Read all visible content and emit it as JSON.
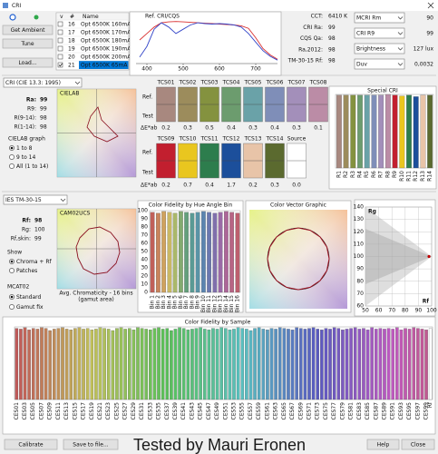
{
  "window": {
    "title": "CRI"
  },
  "buttons": {
    "get_ambient": "Get Ambient",
    "tune": "Tune",
    "load": "Load...",
    "calibrate": "Calibrate",
    "save": "Save to file...",
    "help": "Help",
    "close": "Close"
  },
  "measurements": {
    "headers": [
      "v",
      "#",
      "Name"
    ],
    "rows": [
      {
        "number": 16,
        "name": "Opt 6500K 160mA"
      },
      {
        "number": 17,
        "name": "Opt 6500K 170mA"
      },
      {
        "number": 18,
        "name": "Opt 6500K 180mA"
      },
      {
        "number": 19,
        "name": "Opt 6500K 190mA"
      },
      {
        "number": 20,
        "name": "Opt 6500K 200mA"
      },
      {
        "number": 21,
        "name": "Opt 6500K 65mA",
        "selected": true
      }
    ]
  },
  "metrics": [
    {
      "label": "CCT:",
      "value": "6410 K"
    },
    {
      "label": "CRI Ra:",
      "value": 99
    },
    {
      "label": "CQS Qa:",
      "value": 98
    },
    {
      "label": "Ra,2012:",
      "value": 98
    },
    {
      "label": "TM-30-15 Rf:",
      "value": 98
    }
  ],
  "selectors": [
    {
      "label": "MCRI Rm",
      "value": 90
    },
    {
      "label": "CRI R9",
      "value": 99
    },
    {
      "label": "Brightness",
      "value": "127 lux"
    },
    {
      "label": "Duv",
      "value": "0,0032"
    }
  ],
  "cri": {
    "method": "CRI (CIE 13.3: 1995)",
    "stats": [
      {
        "label": "Ra:",
        "value": 99
      },
      {
        "label": "R9:",
        "value": 99
      },
      {
        "label": "R(9-14):",
        "value": 98
      },
      {
        "label": "R(1-14):",
        "value": 98
      }
    ],
    "graph_label": "CIELAB graph",
    "graph_options": [
      "1 to 8",
      "9 to 14",
      "All (1 to 14)"
    ],
    "graph_selected": 0,
    "plot_title": "CIELAB"
  },
  "tcs": {
    "ref_label": "Ref.",
    "test_label": "Test",
    "delta_label": "ΔE*ab",
    "rows": [
      [
        {
          "name": "TCS01",
          "color": "#a8887f",
          "delta": "0.2"
        },
        {
          "name": "TCS02",
          "color": "#9c8c5c",
          "delta": "0.3"
        },
        {
          "name": "TCS03",
          "color": "#84923f",
          "delta": "0.5"
        },
        {
          "name": "TCS04",
          "color": "#6c9c6e",
          "delta": "0.4"
        },
        {
          "name": "TCS05",
          "color": "#6aa2a8",
          "delta": "0.3"
        },
        {
          "name": "TCS06",
          "color": "#7f8eb8",
          "delta": "0.4"
        },
        {
          "name": "TCS07",
          "color": "#a38fba",
          "delta": "0.3"
        },
        {
          "name": "TCS08",
          "color": "#bb8ca6",
          "delta": "0.1"
        }
      ],
      [
        {
          "name": "TCS09",
          "color": "#c21f2f",
          "delta": "0.2"
        },
        {
          "name": "TCS10",
          "color": "#e9c61f",
          "delta": "0.7"
        },
        {
          "name": "TCS11",
          "color": "#2d7d4d",
          "delta": "0.4"
        },
        {
          "name": "TCS12",
          "color": "#1c4f9b",
          "delta": "1.7"
        },
        {
          "name": "TCS13",
          "color": "#e8c4a8",
          "delta": "0.2"
        },
        {
          "name": "TCS14",
          "color": "#5b6a2f",
          "delta": "0.3"
        },
        {
          "name": "Source",
          "color": "#ffffff",
          "delta": "0.0"
        }
      ]
    ]
  },
  "tm30": {
    "method": "IES TM-30-15",
    "stats": [
      {
        "label": "Rf:",
        "value": 98
      },
      {
        "label": "Rg:",
        "value": 100
      },
      {
        "label": "Rf,skin:",
        "value": 99
      }
    ],
    "show_label": "Show",
    "show_options": [
      "Chroma + Rf",
      "Patches"
    ],
    "show_selected": 0,
    "mcat_label": "MCAT02",
    "mcat_options": [
      "Standard",
      "Gamut fix"
    ],
    "mcat_selected": 0,
    "plot_title": "CAM02UCS",
    "plot_caption": "Avg. Chromaticity - 16 bins",
    "plot_note": "(gamut area)",
    "vector_title": "Color Vector Graphic"
  },
  "watermark": "Tested by Mauri Eronen",
  "chart_data": [
    {
      "type": "line",
      "title": "Ref. CRI/CQS",
      "x": [
        380,
        400,
        420,
        440,
        460,
        480,
        500,
        520,
        540,
        560,
        580,
        600,
        620,
        640,
        660,
        680,
        700,
        720,
        740,
        760
      ],
      "xlim": [
        370,
        760
      ],
      "xticks": [
        400,
        500,
        600,
        700
      ],
      "ylim": [
        0,
        1.1
      ],
      "series": [
        {
          "color": "#d93030",
          "values": [
            0.55,
            0.7,
            0.85,
            0.95,
            0.97,
            0.98,
            0.97,
            0.96,
            0.95,
            0.94,
            0.93,
            0.92,
            0.91,
            0.9,
            0.88,
            0.82,
            0.6,
            0.35,
            0.2,
            0.1
          ]
        },
        {
          "color": "#3345c8",
          "values": [
            0.15,
            0.4,
            0.8,
            0.95,
            0.85,
            0.7,
            0.8,
            0.9,
            0.95,
            0.93,
            0.92,
            0.93,
            0.92,
            0.9,
            0.85,
            0.7,
            0.5,
            0.3,
            0.17,
            0.08
          ]
        }
      ]
    },
    {
      "type": "bar",
      "title": "Special CRI",
      "categories": [
        "R1",
        "R2",
        "R3",
        "R4",
        "R5",
        "R6",
        "R7",
        "R8",
        "R9",
        "R10",
        "R11",
        "R12",
        "R13",
        "R14"
      ],
      "values": [
        99,
        99,
        99,
        99,
        99,
        99,
        99,
        100,
        99,
        98,
        99,
        97,
        99,
        99
      ],
      "colors": [
        "#a8887f",
        "#9c8c5c",
        "#84923f",
        "#6c9c6e",
        "#6aa2a8",
        "#7f8eb8",
        "#a38fba",
        "#bb8ca6",
        "#c21f2f",
        "#e9c61f",
        "#2d7d4d",
        "#1c4f9b",
        "#e8c4a8",
        "#5b6a2f"
      ],
      "ylim": [
        0,
        100
      ]
    },
    {
      "type": "bar",
      "title": "Color Fidelity by Hue Angle Bin",
      "categories": [
        "Bin 1",
        "Bin 2",
        "Bin 3",
        "Bin 4",
        "Bin 5",
        "Bin 6",
        "Bin 7",
        "Bin 8",
        "Bin 9",
        "Bin 10",
        "Bin 11",
        "Bin 12",
        "Bin 13",
        "Bin 14",
        "Bin 15",
        "Bin 16"
      ],
      "values": [
        98,
        97,
        99,
        98,
        97,
        99,
        98,
        97,
        98,
        99,
        98,
        97,
        98,
        99,
        98,
        97
      ],
      "colors": [
        "#c0605a",
        "#c9845c",
        "#cfa25e",
        "#c9b865",
        "#aab86a",
        "#84ab70",
        "#64a07c",
        "#5a9a94",
        "#5a94a6",
        "#5a84b0",
        "#6a78b0",
        "#8070ac",
        "#9a6aa6",
        "#ad6698",
        "#b86484",
        "#bd5f6e"
      ],
      "ylim": [
        0,
        100
      ],
      "yticks": [
        0,
        10,
        20,
        30,
        40,
        50,
        60,
        70,
        80,
        90,
        100
      ],
      "grid": true
    },
    {
      "type": "scatter",
      "xlabel": "Rf",
      "ylabel": "Rg",
      "x": [
        98
      ],
      "values": [
        100
      ],
      "color": "#c00000",
      "xlim": [
        50,
        100
      ],
      "xticks": [
        50,
        60,
        70,
        80,
        90,
        100
      ],
      "ylim": [
        60,
        140
      ],
      "yticks": [
        60,
        70,
        80,
        90,
        100,
        110,
        120,
        130,
        140
      ],
      "grid": true
    },
    {
      "type": "bar",
      "title": "Color Fidelity by Sample",
      "categories": [
        "CES01",
        null,
        "CES03",
        null,
        "CES05",
        null,
        "CES07",
        null,
        "CES09",
        null,
        "CES11",
        null,
        "CES13",
        null,
        "CES15",
        null,
        "CES17",
        null,
        "CES19",
        null,
        "CES21",
        null,
        "CES23",
        null,
        "CES25",
        null,
        "CES27",
        null,
        "CES29",
        null,
        "CES31",
        null,
        "CES33",
        null,
        "CES35",
        null,
        "CES37",
        null,
        "CES39",
        null,
        "CES41",
        null,
        "CES43",
        null,
        "CES45",
        null,
        "CES47",
        null,
        "CES49",
        null,
        "CES51",
        null,
        "CES53",
        null,
        "CES55",
        null,
        "CES57",
        null,
        "CES59",
        null,
        "CES61",
        null,
        "CES63",
        null,
        "CES65",
        null,
        "CES67",
        null,
        "CES69",
        null,
        "CES71",
        null,
        "CES73",
        null,
        "CES75",
        null,
        "CES77",
        null,
        "CES79",
        null,
        "CES81",
        null,
        "CES83",
        null,
        "CES85",
        null,
        "CES87",
        null,
        "CES89",
        null,
        "CES91",
        null,
        "CES93",
        null,
        "CES95",
        null,
        "CES97",
        null,
        "CES99",
        "Rf"
      ],
      "values": [
        98,
        97,
        99,
        96,
        98,
        97,
        99,
        98,
        95,
        97,
        98,
        99,
        97,
        96,
        98,
        99,
        97,
        98,
        96,
        97,
        99,
        98,
        97,
        95,
        98,
        99,
        97,
        98,
        96,
        99,
        98,
        97,
        96,
        98,
        99,
        97,
        98,
        95,
        97,
        99,
        98,
        96,
        97,
        98,
        99,
        97,
        96,
        98,
        97,
        99,
        98,
        96,
        97,
        99,
        98,
        97,
        95,
        98,
        99,
        97,
        96,
        98,
        97,
        99,
        98,
        97,
        96,
        99,
        98,
        97,
        98,
        99,
        97,
        96,
        98,
        97,
        99,
        98,
        96,
        97,
        98,
        99,
        97,
        98,
        96,
        99,
        97,
        98,
        97,
        98,
        97,
        99,
        96,
        98,
        97,
        99,
        98,
        97,
        96,
        98
      ],
      "ylim": [
        0,
        100
      ]
    }
  ]
}
